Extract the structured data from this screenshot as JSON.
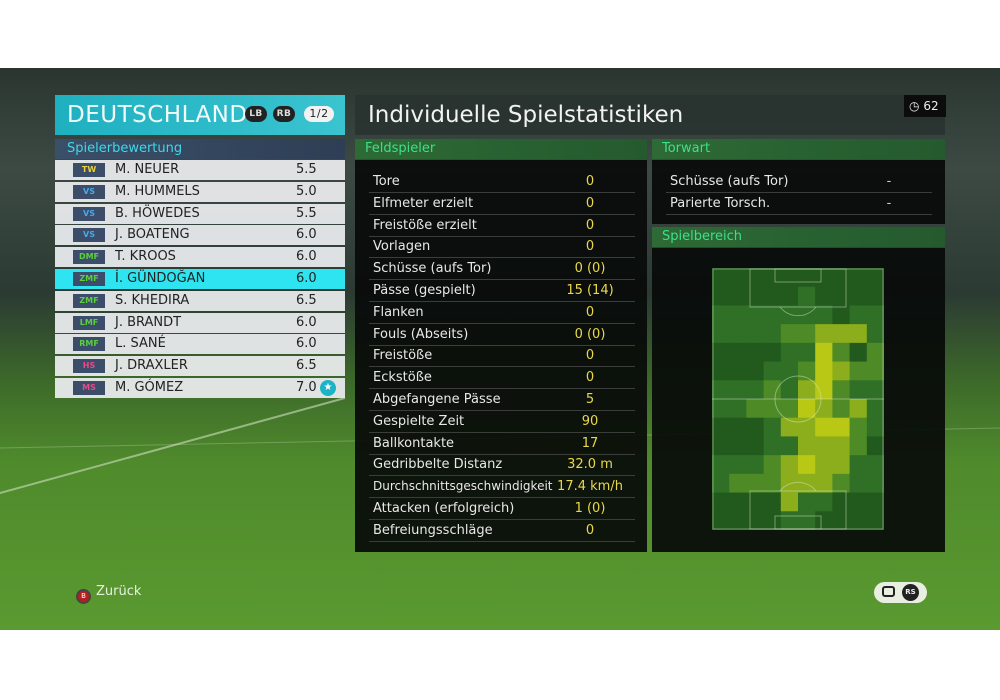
{
  "team": {
    "name": "DEUTSCHLAND",
    "lb": "LB",
    "rb": "RB",
    "page": "1/2"
  },
  "ratings_header": "Spielerbewertung",
  "players": [
    {
      "pos": "TW",
      "pos_color": "#e8d040",
      "name": "M. NEUER",
      "rating": "5.5"
    },
    {
      "pos": "VS",
      "pos_color": "#4aa8e8",
      "name": "M. HUMMELS",
      "rating": "5.0"
    },
    {
      "pos": "VS",
      "pos_color": "#4aa8e8",
      "name": "B. HÖWEDES",
      "rating": "5.5"
    },
    {
      "pos": "VS",
      "pos_color": "#4aa8e8",
      "name": "J. BOATENG",
      "rating": "6.0"
    },
    {
      "pos": "DMF",
      "pos_color": "#5ad040",
      "name": "T. KROOS",
      "rating": "6.0"
    },
    {
      "pos": "ZMF",
      "pos_color": "#5ad040",
      "name": "İ. GÜNDOĞAN",
      "rating": "6.0",
      "selected": true
    },
    {
      "pos": "ZMF",
      "pos_color": "#5ad040",
      "name": "S. KHEDIRA",
      "rating": "6.5"
    },
    {
      "pos": "LMF",
      "pos_color": "#5ad040",
      "name": "J. BRANDT",
      "rating": "6.0"
    },
    {
      "pos": "RMF",
      "pos_color": "#5ad040",
      "name": "L. SANÉ",
      "rating": "6.0"
    },
    {
      "pos": "HS",
      "pos_color": "#e84a8a",
      "name": "J. DRAXLER",
      "rating": "6.5"
    },
    {
      "pos": "MS",
      "pos_color": "#e84a8a",
      "name": "M. GÓMEZ",
      "rating": "7.0",
      "star": true
    }
  ],
  "title": "Individuelle Spielstatistiken",
  "timer": {
    "icon": "clock-icon",
    "value": "62"
  },
  "field_player": {
    "header": "Feldspieler",
    "stats": [
      {
        "label": "Tore",
        "value": "0"
      },
      {
        "label": "Elfmeter erzielt",
        "value": "0"
      },
      {
        "label": "Freistöße erzielt",
        "value": "0"
      },
      {
        "label": "Vorlagen",
        "value": "0"
      },
      {
        "label": "Schüsse (aufs Tor)",
        "value": "0 (0)"
      },
      {
        "label": "Pässe (gespielt)",
        "value": "15 (14)"
      },
      {
        "label": "Flanken",
        "value": "0"
      },
      {
        "label": "Fouls (Abseits)",
        "value": "0 (0)"
      },
      {
        "label": "Freistöße",
        "value": "0"
      },
      {
        "label": "Eckstöße",
        "value": "0"
      },
      {
        "label": "Abgefangene Pässe",
        "value": "5"
      },
      {
        "label": "Gespielte Zeit",
        "value": "90"
      },
      {
        "label": "Ballkontakte",
        "value": "17"
      },
      {
        "label": "Gedribbelte Distanz",
        "value": "32.0 m"
      },
      {
        "label": "Durchschnittsgeschwindigkeit",
        "value": "17.4 km/h"
      },
      {
        "label": "Attacken (erfolgreich)",
        "value": "1 (0)"
      },
      {
        "label": "Befreiungsschläge",
        "value": "0"
      }
    ]
  },
  "goalkeeper": {
    "header": "Torwart",
    "stats": [
      {
        "label": "Schüsse (aufs Tor)",
        "value": "-"
      },
      {
        "label": "Parierte Torsch.",
        "value": "-"
      }
    ]
  },
  "play_area": {
    "header": "Spielbereich",
    "heatmap_levels": [
      [
        0,
        0,
        0,
        0,
        0,
        0,
        0,
        0,
        0,
        0
      ],
      [
        0,
        0,
        0,
        0,
        0,
        1,
        0,
        0,
        0,
        0
      ],
      [
        1,
        1,
        1,
        1,
        1,
        1,
        1,
        0,
        1,
        1
      ],
      [
        1,
        1,
        1,
        1,
        2,
        2,
        3,
        3,
        3,
        1
      ],
      [
        0,
        0,
        0,
        0,
        1,
        1,
        4,
        2,
        0,
        2
      ],
      [
        0,
        0,
        0,
        1,
        1,
        2,
        4,
        3,
        2,
        2
      ],
      [
        1,
        1,
        1,
        2,
        1,
        3,
        4,
        2,
        1,
        1
      ],
      [
        1,
        1,
        2,
        2,
        2,
        4,
        3,
        2,
        3,
        1
      ],
      [
        0,
        0,
        0,
        1,
        3,
        3,
        4,
        4,
        2,
        1
      ],
      [
        0,
        0,
        0,
        1,
        1,
        3,
        3,
        3,
        2,
        0
      ],
      [
        1,
        1,
        1,
        2,
        3,
        4,
        3,
        3,
        1,
        1
      ],
      [
        1,
        2,
        2,
        2,
        3,
        3,
        3,
        2,
        1,
        1
      ],
      [
        0,
        0,
        0,
        0,
        3,
        1,
        1,
        0,
        0,
        0
      ],
      [
        0,
        0,
        0,
        0,
        1,
        1,
        0,
        0,
        0,
        0
      ]
    ],
    "level_colors": [
      "#215a1c",
      "#2f7026",
      "#4e8a26",
      "#8cae1c",
      "#b8c815"
    ]
  },
  "footer": {
    "back_label": "Zurück",
    "back_button": "B",
    "right_icons": [
      "chat-icon",
      "rs-icon"
    ],
    "rs_label": "RS"
  }
}
